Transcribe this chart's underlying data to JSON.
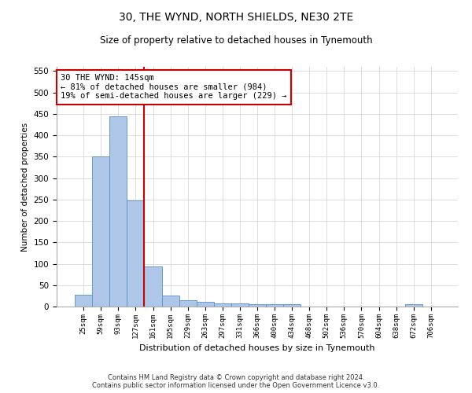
{
  "title": "30, THE WYND, NORTH SHIELDS, NE30 2TE",
  "subtitle": "Size of property relative to detached houses in Tynemouth",
  "xlabel": "Distribution of detached houses by size in Tynemouth",
  "ylabel": "Number of detached properties",
  "categories": [
    "25sqm",
    "59sqm",
    "93sqm",
    "127sqm",
    "161sqm",
    "195sqm",
    "229sqm",
    "263sqm",
    "297sqm",
    "331sqm",
    "366sqm",
    "400sqm",
    "434sqm",
    "468sqm",
    "502sqm",
    "536sqm",
    "570sqm",
    "604sqm",
    "638sqm",
    "672sqm",
    "706sqm"
  ],
  "values": [
    28,
    350,
    445,
    248,
    93,
    25,
    14,
    11,
    8,
    7,
    6,
    5,
    5,
    0,
    0,
    0,
    0,
    0,
    0,
    5,
    0
  ],
  "bar_color": "#aec6e8",
  "bar_edge_color": "#5a8fc2",
  "red_line_x": 3.5,
  "annotation_title": "30 THE WYND: 145sqm",
  "annotation_line1": "← 81% of detached houses are smaller (984)",
  "annotation_line2": "19% of semi-detached houses are larger (229) →",
  "annotation_box_color": "#ffffff",
  "annotation_box_edge": "#cc0000",
  "ylim": [
    0,
    560
  ],
  "yticks": [
    0,
    50,
    100,
    150,
    200,
    250,
    300,
    350,
    400,
    450,
    500,
    550
  ],
  "footer_line1": "Contains HM Land Registry data © Crown copyright and database right 2024.",
  "footer_line2": "Contains public sector information licensed under the Open Government Licence v3.0.",
  "background_color": "#ffffff",
  "grid_color": "#d0d0d0"
}
